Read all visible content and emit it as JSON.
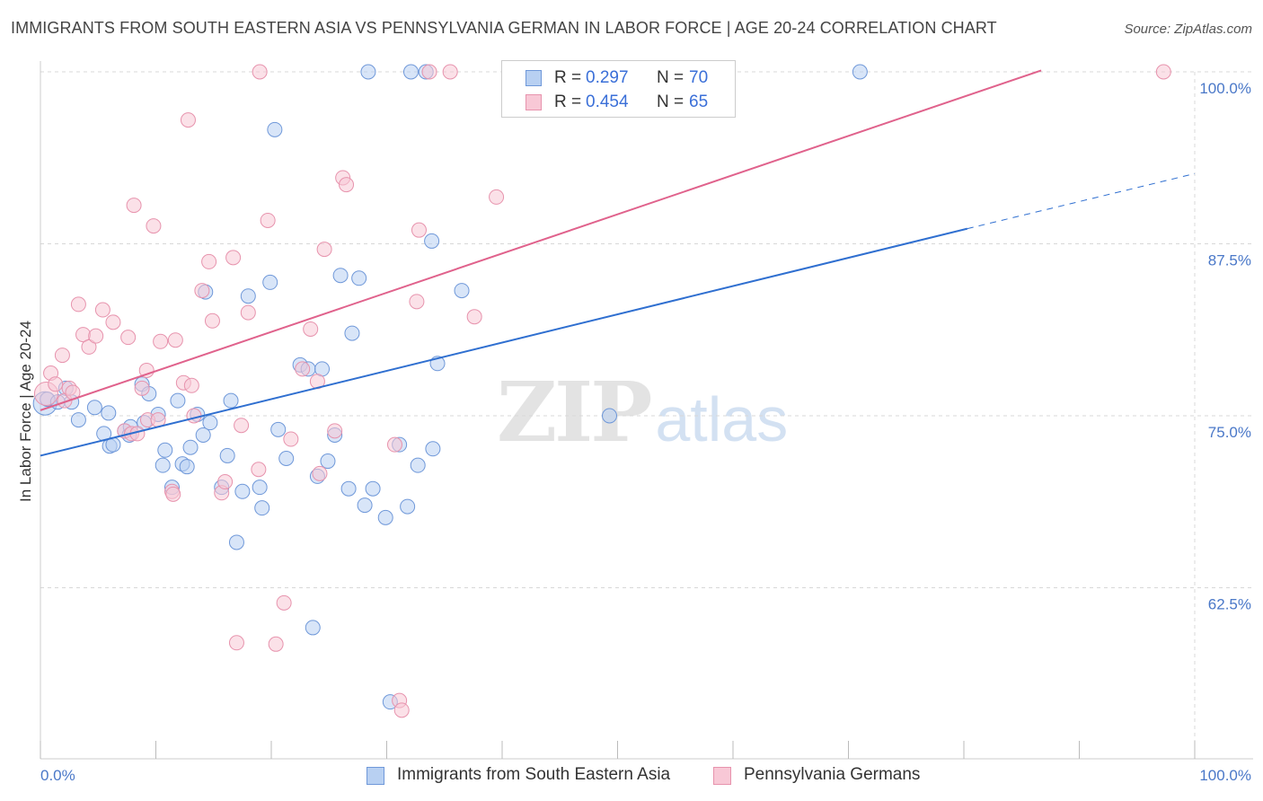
{
  "title": "IMMIGRANTS FROM SOUTH EASTERN ASIA VS PENNSYLVANIA GERMAN IN LABOR FORCE | AGE 20-24 CORRELATION CHART",
  "source": "Source: ZipAtlas.com",
  "watermark": {
    "zip": "ZIP",
    "atlas": "atlas"
  },
  "legend": {
    "r_label": "R =",
    "n_label": "N =",
    "rows": [
      {
        "r": "0.297",
        "n": "70"
      },
      {
        "r": "0.454",
        "n": "65"
      }
    ]
  },
  "colors": {
    "blue_fill": "#b8d0f2",
    "blue_stroke": "#6f98d9",
    "blue_line": "#2f6fd0",
    "pink_fill": "#f8c8d6",
    "pink_stroke": "#e793ad",
    "pink_line": "#e0628c",
    "tick_text": "#4a78c8",
    "grid": "#d8d8d8"
  },
  "chart_data": {
    "type": "scatter",
    "title": "IMMIGRANTS FROM SOUTH EASTERN ASIA VS PENNSYLVANIA GERMAN IN LABOR FORCE | AGE 20-24 CORRELATION CHART",
    "xlabel": "",
    "ylabel": "In Labor Force | Age 20-24",
    "xlim": [
      0,
      100
    ],
    "ylim": [
      50.5,
      101
    ],
    "x_tick_labels": [
      "0.0%",
      "100.0%"
    ],
    "y_ticks": [
      62.5,
      75.0,
      87.5,
      100.0
    ],
    "y_tick_labels": [
      "62.5%",
      "75.0%",
      "87.5%",
      "100.0%"
    ],
    "grid": "horizontal dashed",
    "legend_placement": "bottom",
    "series": [
      {
        "name": "Immigrants from South Eastern Asia",
        "color": "#6f98d9",
        "r": 0.297,
        "n": 70,
        "trend": {
          "x": [
            0,
            80.3
          ],
          "y": [
            72.1,
            88.6
          ]
        },
        "trend_dashed": {
          "x": [
            80.3,
            100
          ],
          "y": [
            88.6,
            92.6
          ]
        },
        "points": [
          {
            "x": 0.4,
            "y": 75.9,
            "big": true
          },
          {
            "x": 0.6,
            "y": 76.2
          },
          {
            "x": 1.5,
            "y": 76.0
          },
          {
            "x": 2.2,
            "y": 77.0
          },
          {
            "x": 2.7,
            "y": 76.0
          },
          {
            "x": 3.3,
            "y": 74.7
          },
          {
            "x": 4.7,
            "y": 75.6
          },
          {
            "x": 5.5,
            "y": 73.7
          },
          {
            "x": 5.9,
            "y": 75.2
          },
          {
            "x": 6.0,
            "y": 72.8
          },
          {
            "x": 6.3,
            "y": 72.9
          },
          {
            "x": 7.3,
            "y": 73.9
          },
          {
            "x": 7.7,
            "y": 73.6
          },
          {
            "x": 7.8,
            "y": 74.2
          },
          {
            "x": 8.8,
            "y": 77.3
          },
          {
            "x": 9.0,
            "y": 74.5
          },
          {
            "x": 9.4,
            "y": 76.6
          },
          {
            "x": 10.2,
            "y": 75.1
          },
          {
            "x": 10.6,
            "y": 71.4
          },
          {
            "x": 10.8,
            "y": 72.5
          },
          {
            "x": 11.4,
            "y": 69.8
          },
          {
            "x": 11.9,
            "y": 76.1
          },
          {
            "x": 12.3,
            "y": 71.5
          },
          {
            "x": 12.7,
            "y": 71.3
          },
          {
            "x": 13.0,
            "y": 72.7
          },
          {
            "x": 13.6,
            "y": 75.1
          },
          {
            "x": 14.1,
            "y": 73.6
          },
          {
            "x": 14.3,
            "y": 84.0
          },
          {
            "x": 14.7,
            "y": 74.5
          },
          {
            "x": 15.7,
            "y": 69.8
          },
          {
            "x": 16.2,
            "y": 72.1
          },
          {
            "x": 16.5,
            "y": 76.1
          },
          {
            "x": 17.0,
            "y": 65.8
          },
          {
            "x": 17.5,
            "y": 69.5
          },
          {
            "x": 18.0,
            "y": 83.7
          },
          {
            "x": 19.0,
            "y": 69.8
          },
          {
            "x": 19.2,
            "y": 68.3
          },
          {
            "x": 19.9,
            "y": 84.7
          },
          {
            "x": 20.3,
            "y": 95.8
          },
          {
            "x": 20.6,
            "y": 74.0
          },
          {
            "x": 21.3,
            "y": 71.9
          },
          {
            "x": 22.5,
            "y": 78.7
          },
          {
            "x": 23.2,
            "y": 78.4
          },
          {
            "x": 23.6,
            "y": 59.6
          },
          {
            "x": 24.0,
            "y": 70.6
          },
          {
            "x": 24.4,
            "y": 78.4
          },
          {
            "x": 24.9,
            "y": 71.7
          },
          {
            "x": 25.5,
            "y": 73.6
          },
          {
            "x": 26.0,
            "y": 85.2
          },
          {
            "x": 26.7,
            "y": 69.7
          },
          {
            "x": 27.0,
            "y": 81.0
          },
          {
            "x": 27.6,
            "y": 85.0
          },
          {
            "x": 28.1,
            "y": 68.5
          },
          {
            "x": 28.4,
            "y": 100.0
          },
          {
            "x": 28.8,
            "y": 69.7
          },
          {
            "x": 29.9,
            "y": 67.6
          },
          {
            "x": 30.3,
            "y": 54.2
          },
          {
            "x": 31.1,
            "y": 72.9
          },
          {
            "x": 31.8,
            "y": 68.4
          },
          {
            "x": 32.1,
            "y": 100.0
          },
          {
            "x": 32.7,
            "y": 71.4
          },
          {
            "x": 33.4,
            "y": 100.0
          },
          {
            "x": 33.9,
            "y": 87.7
          },
          {
            "x": 34.0,
            "y": 72.6
          },
          {
            "x": 34.4,
            "y": 78.8
          },
          {
            "x": 36.5,
            "y": 84.1
          },
          {
            "x": 41.4,
            "y": 100.0
          },
          {
            "x": 47.7,
            "y": 100.0
          },
          {
            "x": 49.3,
            "y": 75.0
          },
          {
            "x": 71.0,
            "y": 100.0
          }
        ]
      },
      {
        "name": "Pennsylvania Germans",
        "color": "#e793ad",
        "r": 0.454,
        "n": 65,
        "trend": {
          "x": [
            0,
            86.7
          ],
          "y": [
            75.4,
            100.1
          ]
        },
        "points": [
          {
            "x": 0.5,
            "y": 76.6,
            "big": true
          },
          {
            "x": 0.9,
            "y": 78.1
          },
          {
            "x": 1.3,
            "y": 77.3
          },
          {
            "x": 1.9,
            "y": 79.4
          },
          {
            "x": 2.1,
            "y": 76.1
          },
          {
            "x": 2.5,
            "y": 77.0
          },
          {
            "x": 2.8,
            "y": 76.7
          },
          {
            "x": 3.3,
            "y": 83.1
          },
          {
            "x": 3.7,
            "y": 80.9
          },
          {
            "x": 4.2,
            "y": 80.0
          },
          {
            "x": 4.8,
            "y": 80.8
          },
          {
            "x": 5.4,
            "y": 82.7
          },
          {
            "x": 6.3,
            "y": 81.8
          },
          {
            "x": 7.3,
            "y": 73.9
          },
          {
            "x": 7.6,
            "y": 80.7
          },
          {
            "x": 7.9,
            "y": 73.7
          },
          {
            "x": 8.1,
            "y": 90.3
          },
          {
            "x": 8.4,
            "y": 73.7
          },
          {
            "x": 8.8,
            "y": 77.0
          },
          {
            "x": 9.2,
            "y": 78.3
          },
          {
            "x": 9.3,
            "y": 74.7
          },
          {
            "x": 9.8,
            "y": 88.8
          },
          {
            "x": 10.2,
            "y": 74.7
          },
          {
            "x": 10.4,
            "y": 80.4
          },
          {
            "x": 11.4,
            "y": 69.5
          },
          {
            "x": 11.5,
            "y": 69.3
          },
          {
            "x": 11.7,
            "y": 80.5
          },
          {
            "x": 12.4,
            "y": 77.4
          },
          {
            "x": 12.8,
            "y": 96.5
          },
          {
            "x": 13.1,
            "y": 77.2
          },
          {
            "x": 13.3,
            "y": 75.0
          },
          {
            "x": 14.0,
            "y": 84.1
          },
          {
            "x": 14.6,
            "y": 86.2
          },
          {
            "x": 14.9,
            "y": 81.9
          },
          {
            "x": 15.7,
            "y": 69.4
          },
          {
            "x": 16.0,
            "y": 70.2
          },
          {
            "x": 16.7,
            "y": 86.5
          },
          {
            "x": 17.0,
            "y": 58.5
          },
          {
            "x": 17.4,
            "y": 74.3
          },
          {
            "x": 18.0,
            "y": 82.5
          },
          {
            "x": 18.9,
            "y": 71.1
          },
          {
            "x": 19.0,
            "y": 100.0
          },
          {
            "x": 19.7,
            "y": 89.2
          },
          {
            "x": 20.4,
            "y": 58.4
          },
          {
            "x": 21.1,
            "y": 61.4
          },
          {
            "x": 21.7,
            "y": 73.3
          },
          {
            "x": 22.7,
            "y": 78.4
          },
          {
            "x": 23.4,
            "y": 81.3
          },
          {
            "x": 24.0,
            "y": 77.5
          },
          {
            "x": 24.2,
            "y": 70.8
          },
          {
            "x": 24.6,
            "y": 87.1
          },
          {
            "x": 25.5,
            "y": 73.9
          },
          {
            "x": 26.2,
            "y": 92.3
          },
          {
            "x": 26.5,
            "y": 91.8
          },
          {
            "x": 30.7,
            "y": 72.9
          },
          {
            "x": 31.1,
            "y": 54.3
          },
          {
            "x": 31.3,
            "y": 53.6
          },
          {
            "x": 32.6,
            "y": 83.3
          },
          {
            "x": 32.8,
            "y": 88.5
          },
          {
            "x": 33.7,
            "y": 100.0
          },
          {
            "x": 35.5,
            "y": 100.0
          },
          {
            "x": 37.6,
            "y": 82.2
          },
          {
            "x": 39.5,
            "y": 90.9
          },
          {
            "x": 58.4,
            "y": 100.0
          },
          {
            "x": 97.3,
            "y": 100.0
          }
        ]
      }
    ]
  }
}
